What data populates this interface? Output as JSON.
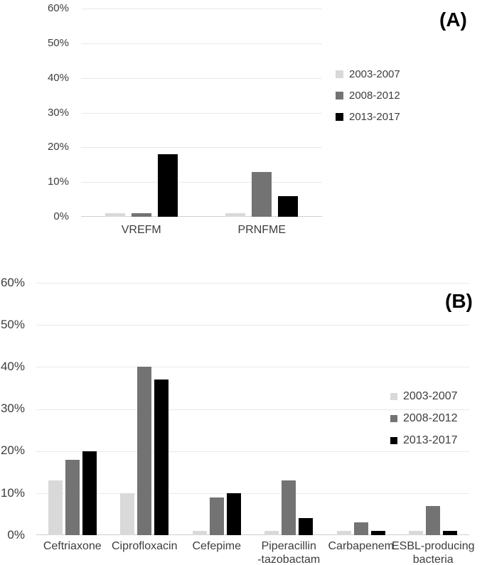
{
  "figure": {
    "background": "#ffffff"
  },
  "colors": {
    "gridline": "#e9e9e9",
    "axis_line": "#cfcfcf",
    "tick_text": "#3d3d3d",
    "panel_label_text": "#000000",
    "series_light": "#d9d9d9",
    "series_mid": "#737373",
    "series_dark": "#000000"
  },
  "chart_data": [
    {
      "type": "bar",
      "panel_label": "(A)",
      "title": "",
      "xlabel": "",
      "ylabel": "",
      "categories": [
        "VREFM",
        "PRNFME"
      ],
      "series": [
        {
          "name": "2003-2007",
          "color": "#d9d9d9",
          "values": [
            1,
            1
          ]
        },
        {
          "name": "2008-2012",
          "color": "#737373",
          "values": [
            1,
            13
          ]
        },
        {
          "name": "2013-2017",
          "color": "#000000",
          "values": [
            18,
            6
          ]
        }
      ],
      "ylim": [
        0,
        60
      ],
      "ytick_values": [
        0,
        10,
        20,
        30,
        40,
        50,
        60
      ],
      "ytick_labels": [
        "0%",
        "10%",
        "20%",
        "30%",
        "40%",
        "50%",
        "60%"
      ],
      "grid": true,
      "legend_position": "right"
    },
    {
      "type": "bar",
      "panel_label": "(B)",
      "title": "",
      "xlabel": "",
      "ylabel": "",
      "categories": [
        "Ceftriaxone",
        "Ciprofloxacin",
        "Cefepime",
        "Piperacillin\n-tazobactam",
        "Carbapenem",
        "ESBL-producing\nbacteria"
      ],
      "series": [
        {
          "name": "2003-2007",
          "color": "#d9d9d9",
          "values": [
            13,
            10,
            1,
            1,
            1,
            1
          ]
        },
        {
          "name": "2008-2012",
          "color": "#737373",
          "values": [
            18,
            40,
            9,
            13,
            3,
            7
          ]
        },
        {
          "name": "2013-2017",
          "color": "#000000",
          "values": [
            20,
            37,
            10,
            4,
            1,
            1
          ]
        }
      ],
      "ylim": [
        0,
        60
      ],
      "ytick_values": [
        0,
        10,
        20,
        30,
        40,
        50,
        60
      ],
      "ytick_labels": [
        "0%",
        "10%",
        "20%",
        "30%",
        "40%",
        "50%",
        "60%"
      ],
      "grid": true,
      "legend_position": "right"
    }
  ]
}
